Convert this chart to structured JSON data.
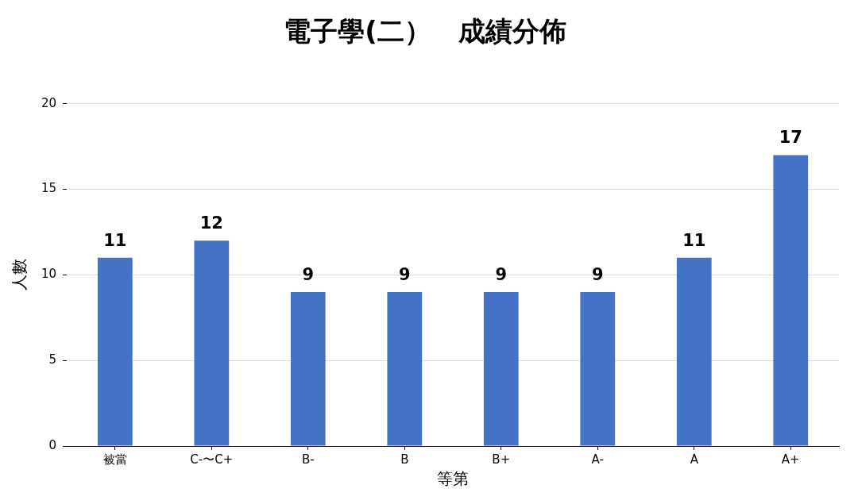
{
  "chart_data": {
    "type": "bar",
    "title": "電子學(二）　成績分佈",
    "xlabel": "等第",
    "ylabel": "人數",
    "categories": [
      "被當",
      "C-〜C+",
      "B-",
      "B",
      "B+",
      "A-",
      "A",
      "A+"
    ],
    "values": [
      11,
      12,
      9,
      9,
      9,
      9,
      11,
      17
    ],
    "color": "#4472c4",
    "ylim": [
      0,
      20
    ],
    "yticks": [
      0,
      5,
      10,
      15,
      20
    ],
    "grid": "y",
    "data_labels": true,
    "legend": false
  }
}
